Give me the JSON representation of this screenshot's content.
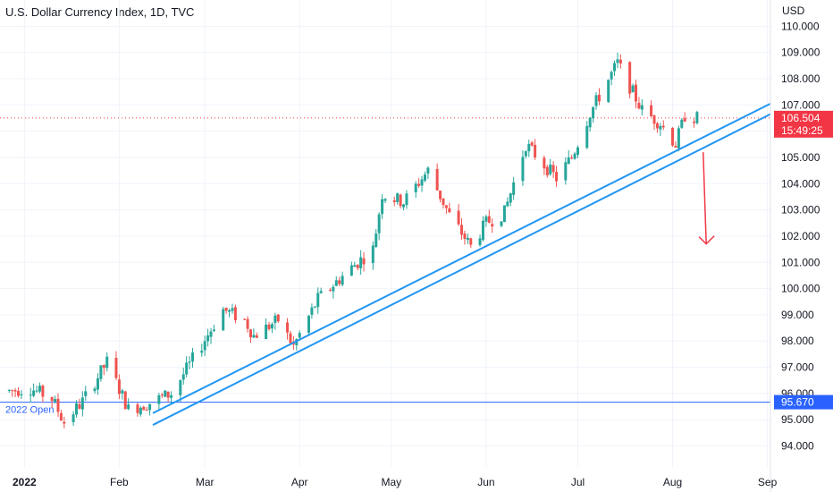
{
  "header": {
    "title": "U.S. Dollar Currency Index, 1D, TVC"
  },
  "colors": {
    "up": "#26a69a",
    "down": "#ef5350",
    "price_tag": "#f23645",
    "level_tag": "#2962ff",
    "trendline": "#2196f3",
    "arrow": "#f23645"
  },
  "chart_data": {
    "type": "candlestick",
    "title": "U.S. Dollar Currency Index, 1D, TVC",
    "currency_label": "USD",
    "ylim": [
      93.2,
      111.0
    ],
    "y_ticks": [
      94.0,
      95.0,
      96.0,
      97.0,
      98.0,
      99.0,
      100.0,
      101.0,
      102.0,
      103.0,
      104.0,
      105.0,
      106.0,
      107.0,
      108.0,
      109.0,
      110.0
    ],
    "y_tick_labels": [
      "94.000",
      "95.000",
      "96.000",
      "97.000",
      "98.000",
      "99.000",
      "100.000",
      "101.000",
      "102.000",
      "103.000",
      "104.000",
      "105.000",
      "106.000",
      "107.000",
      "108.000",
      "109.000",
      "110.000"
    ],
    "x_range": [
      "2021-12-24",
      "2022-09-02"
    ],
    "x_ticks": [
      {
        "date": "2022-01-01",
        "label": "2022"
      },
      {
        "date": "2022-02-01",
        "label": "Feb"
      },
      {
        "date": "2022-03-01",
        "label": "Mar"
      },
      {
        "date": "2022-04-01",
        "label": "Apr"
      },
      {
        "date": "2022-05-01",
        "label": "May"
      },
      {
        "date": "2022-06-01",
        "label": "Jun"
      },
      {
        "date": "2022-07-01",
        "label": "Jul"
      },
      {
        "date": "2022-08-01",
        "label": "Aug"
      },
      {
        "date": "2022-09-01",
        "label": "Sep"
      }
    ],
    "anchors": [
      [
        "2021-12-27",
        96.1
      ],
      [
        "2022-01-03",
        96.2
      ],
      [
        "2022-01-10",
        95.8
      ],
      [
        "2022-01-14",
        94.9
      ],
      [
        "2022-01-20",
        95.7
      ],
      [
        "2022-01-28",
        97.2
      ],
      [
        "2022-02-04",
        95.4
      ],
      [
        "2022-02-10",
        95.6
      ],
      [
        "2022-02-18",
        96.0
      ],
      [
        "2022-02-24",
        97.1
      ],
      [
        "2022-03-07",
        99.2
      ],
      [
        "2022-03-14",
        98.8
      ],
      [
        "2022-03-17",
        98.2
      ],
      [
        "2022-03-25",
        98.8
      ],
      [
        "2022-03-30",
        97.8
      ],
      [
        "2022-04-07",
        99.6
      ],
      [
        "2022-04-18",
        100.8
      ],
      [
        "2022-04-25",
        101.5
      ],
      [
        "2022-04-28",
        103.6
      ],
      [
        "2022-05-05",
        103.3
      ],
      [
        "2022-05-13",
        104.5
      ],
      [
        "2022-05-20",
        102.8
      ],
      [
        "2022-05-27",
        101.6
      ],
      [
        "2022-06-01",
        102.5
      ],
      [
        "2022-06-07",
        102.9
      ],
      [
        "2022-06-14",
        105.5
      ],
      [
        "2022-06-24",
        104.2
      ],
      [
        "2022-06-29",
        105.0
      ],
      [
        "2022-07-05",
        106.7
      ],
      [
        "2022-07-14",
        108.6
      ],
      [
        "2022-07-22",
        106.8
      ],
      [
        "2022-07-28",
        106.3
      ],
      [
        "2022-08-02",
        105.5
      ],
      [
        "2022-08-05",
        106.6
      ],
      [
        "2022-08-09",
        106.5
      ]
    ],
    "last_price": {
      "value": 106.504,
      "label": "106.504",
      "countdown": "15:49:25"
    },
    "horizontal_level": {
      "value": 95.67,
      "label": "95.670",
      "annotation": "2022 Open"
    },
    "trendlines": [
      {
        "start": [
          "2022-02-12",
          95.25
        ],
        "end": [
          "2022-09-02",
          107.05
        ]
      },
      {
        "start": [
          "2022-02-12",
          94.8
        ],
        "end": [
          "2022-09-02",
          106.65
        ]
      }
    ],
    "arrow": {
      "start": [
        "2022-08-11",
        105.2
      ],
      "end": [
        "2022-08-12",
        101.7
      ]
    }
  }
}
